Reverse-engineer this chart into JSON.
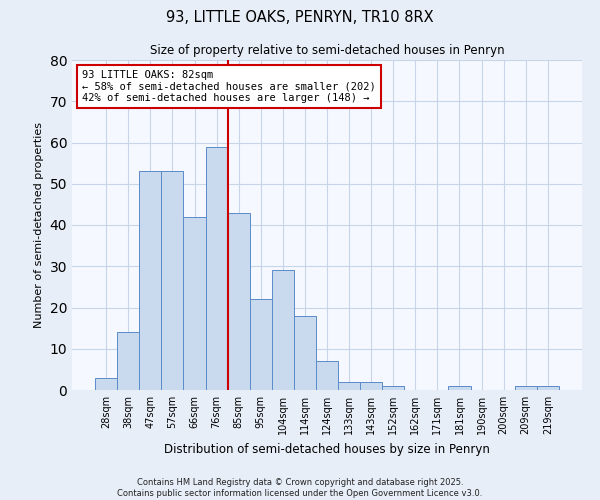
{
  "title": "93, LITTLE OAKS, PENRYN, TR10 8RX",
  "subtitle": "Size of property relative to semi-detached houses in Penryn",
  "xlabel": "Distribution of semi-detached houses by size in Penryn",
  "ylabel": "Number of semi-detached properties",
  "bin_labels": [
    "28sqm",
    "38sqm",
    "47sqm",
    "57sqm",
    "66sqm",
    "76sqm",
    "85sqm",
    "95sqm",
    "104sqm",
    "114sqm",
    "124sqm",
    "133sqm",
    "143sqm",
    "152sqm",
    "162sqm",
    "171sqm",
    "181sqm",
    "190sqm",
    "200sqm",
    "209sqm",
    "219sqm"
  ],
  "bar_heights": [
    3,
    14,
    53,
    53,
    42,
    59,
    43,
    22,
    29,
    18,
    7,
    2,
    2,
    1,
    0,
    0,
    1,
    0,
    0,
    1,
    1
  ],
  "bar_color": "#c9d9ee",
  "bar_edge_color": "#5b8bc9",
  "vline_color": "#cc0000",
  "ylim": [
    0,
    80
  ],
  "yticks": [
    0,
    10,
    20,
    30,
    40,
    50,
    60,
    70,
    80
  ],
  "annotation_title": "93 LITTLE OAKS: 82sqm",
  "annotation_line1": "← 58% of semi-detached houses are smaller (202)",
  "annotation_line2": "42% of semi-detached houses are larger (148) →",
  "annotation_box_color": "#ffffff",
  "annotation_box_edge": "#cc0000",
  "footer_line1": "Contains HM Land Registry data © Crown copyright and database right 2025.",
  "footer_line2": "Contains public sector information licensed under the Open Government Licence v3.0.",
  "background_color": "#e8eef8",
  "plot_background": "#f5f8ff",
  "grid_color": "#c8d4e8"
}
